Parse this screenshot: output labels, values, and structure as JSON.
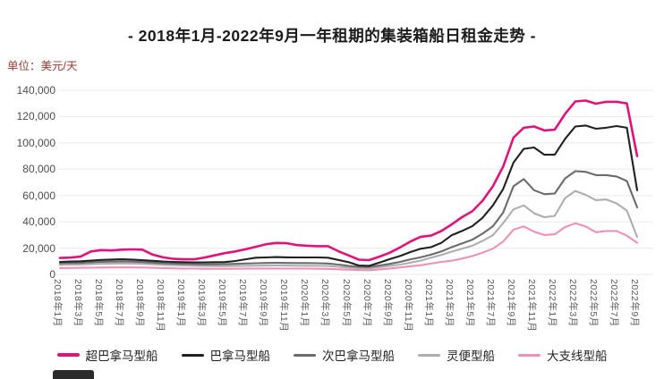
{
  "title": "- 2018年1月-2022年9月一年租期的集装箱船日租金走势 -",
  "unit_label": "单位：美元/天",
  "colors": {
    "title": "#1b1b1b",
    "unit_label": "#9b3c36",
    "gridline": "#ebebeb",
    "axis_text": "#5a5a5a"
  },
  "chart_data": {
    "type": "line",
    "title": "- 2018年1月-2022年9月一年租期的集装箱船日租金走势 -",
    "ylabel": "单位：美元/天",
    "ylim": [
      0,
      140000
    ],
    "y_ticks": [
      0,
      20000,
      40000,
      60000,
      80000,
      100000,
      120000,
      140000
    ],
    "grid": true,
    "legend_position": "bottom",
    "x_tick_step": 2,
    "x": [
      "2018年1月",
      "2018年2月",
      "2018年3月",
      "2018年4月",
      "2018年5月",
      "2018年6月",
      "2018年7月",
      "2018年8月",
      "2018年9月",
      "2018年10月",
      "2018年11月",
      "2018年12月",
      "2019年1月",
      "2019年2月",
      "2019年3月",
      "2019年4月",
      "2019年5月",
      "2019年6月",
      "2019年7月",
      "2019年8月",
      "2019年9月",
      "2019年10月",
      "2019年11月",
      "2019年12月",
      "2020年1月",
      "2020年2月",
      "2020年3月",
      "2020年4月",
      "2020年5月",
      "2020年6月",
      "2020年7月",
      "2020年8月",
      "2020年9月",
      "2020年10月",
      "2020年11月",
      "2020年12月",
      "2021年1月",
      "2021年2月",
      "2021年3月",
      "2021年4月",
      "2021年5月",
      "2021年6月",
      "2021年7月",
      "2021年8月",
      "2021年9月",
      "2021年10月",
      "2021年11月",
      "2021年12月",
      "2022年1月",
      "2022年2月",
      "2022年3月",
      "2022年4月",
      "2022年5月",
      "2022年6月",
      "2022年7月",
      "2022年8月",
      "2022年9月"
    ],
    "series": [
      {
        "name": "超巴拿马型船",
        "color": "#e2127c",
        "values": [
          12500,
          12800,
          13500,
          17500,
          18500,
          18200,
          18800,
          19000,
          18800,
          15000,
          13000,
          11800,
          11500,
          11500,
          12800,
          14500,
          16200,
          17500,
          19100,
          21000,
          23000,
          23900,
          23700,
          22300,
          21800,
          21500,
          21500,
          17700,
          14500,
          11200,
          10900,
          13500,
          16500,
          20500,
          25000,
          28600,
          29500,
          33000,
          38000,
          43500,
          48000,
          56000,
          67000,
          82000,
          104000,
          111500,
          112500,
          109500,
          110000,
          122000,
          131500,
          132200,
          129800,
          131200,
          131200,
          130000,
          90000
        ]
      },
      {
        "name": "巴拿马型船",
        "color": "#212121",
        "values": [
          9500,
          9800,
          10000,
          10500,
          11000,
          11300,
          11500,
          11300,
          10800,
          10300,
          9800,
          9500,
          9300,
          9200,
          9200,
          9300,
          9400,
          10200,
          11500,
          12700,
          12900,
          13200,
          13000,
          12900,
          12900,
          12900,
          12700,
          11000,
          9300,
          6800,
          6500,
          9000,
          11600,
          14000,
          17000,
          19500,
          20700,
          24000,
          29800,
          33000,
          36600,
          43000,
          52500,
          65000,
          85000,
          95500,
          96500,
          91000,
          91000,
          103000,
          112500,
          113200,
          110800,
          111500,
          112800,
          111500,
          64000
        ]
      },
      {
        "name": "次巴拿马型船",
        "color": "#6b6b6b",
        "values": [
          8500,
          8700,
          8800,
          9200,
          9500,
          9700,
          9800,
          9700,
          9400,
          9000,
          8500,
          8200,
          8000,
          7800,
          7700,
          7700,
          7800,
          8000,
          8300,
          8500,
          8700,
          8800,
          8700,
          8600,
          8600,
          8500,
          8300,
          7500,
          6500,
          5800,
          5700,
          6800,
          8000,
          9500,
          11500,
          13000,
          15000,
          17500,
          20700,
          23500,
          26400,
          31000,
          36600,
          47000,
          67000,
          72500,
          64000,
          61000,
          61500,
          73000,
          78500,
          78000,
          75500,
          75500,
          74500,
          71000,
          51000
        ]
      },
      {
        "name": "灵便型船",
        "color": "#aeaeae",
        "values": [
          7300,
          7400,
          7500,
          7800,
          8000,
          8200,
          8300,
          8200,
          8000,
          7700,
          7300,
          7000,
          6800,
          6600,
          6400,
          6300,
          6300,
          6400,
          6500,
          6600,
          6700,
          6800,
          6700,
          6600,
          6600,
          6500,
          6400,
          5800,
          5200,
          4700,
          4600,
          5500,
          6500,
          7500,
          9000,
          10500,
          12700,
          14800,
          17300,
          19500,
          21800,
          25500,
          29800,
          39000,
          49500,
          52500,
          46500,
          43500,
          44500,
          58000,
          63500,
          60500,
          56500,
          57000,
          54000,
          48500,
          28500
        ]
      },
      {
        "name": "大支线型船",
        "color": "#f090b4",
        "values": [
          4800,
          4900,
          5000,
          5100,
          5200,
          5300,
          5300,
          5300,
          5200,
          5000,
          4800,
          4600,
          4500,
          4400,
          4300,
          4300,
          4300,
          4300,
          4400,
          4400,
          4500,
          4500,
          4400,
          4400,
          4400,
          4300,
          4200,
          3900,
          3600,
          3300,
          3200,
          3800,
          4500,
          5300,
          6200,
          7000,
          8200,
          9500,
          10400,
          12000,
          13900,
          16500,
          19600,
          25000,
          34000,
          36500,
          32500,
          30000,
          30500,
          36000,
          38900,
          36500,
          32100,
          33000,
          33000,
          29500,
          24000
        ]
      }
    ]
  }
}
